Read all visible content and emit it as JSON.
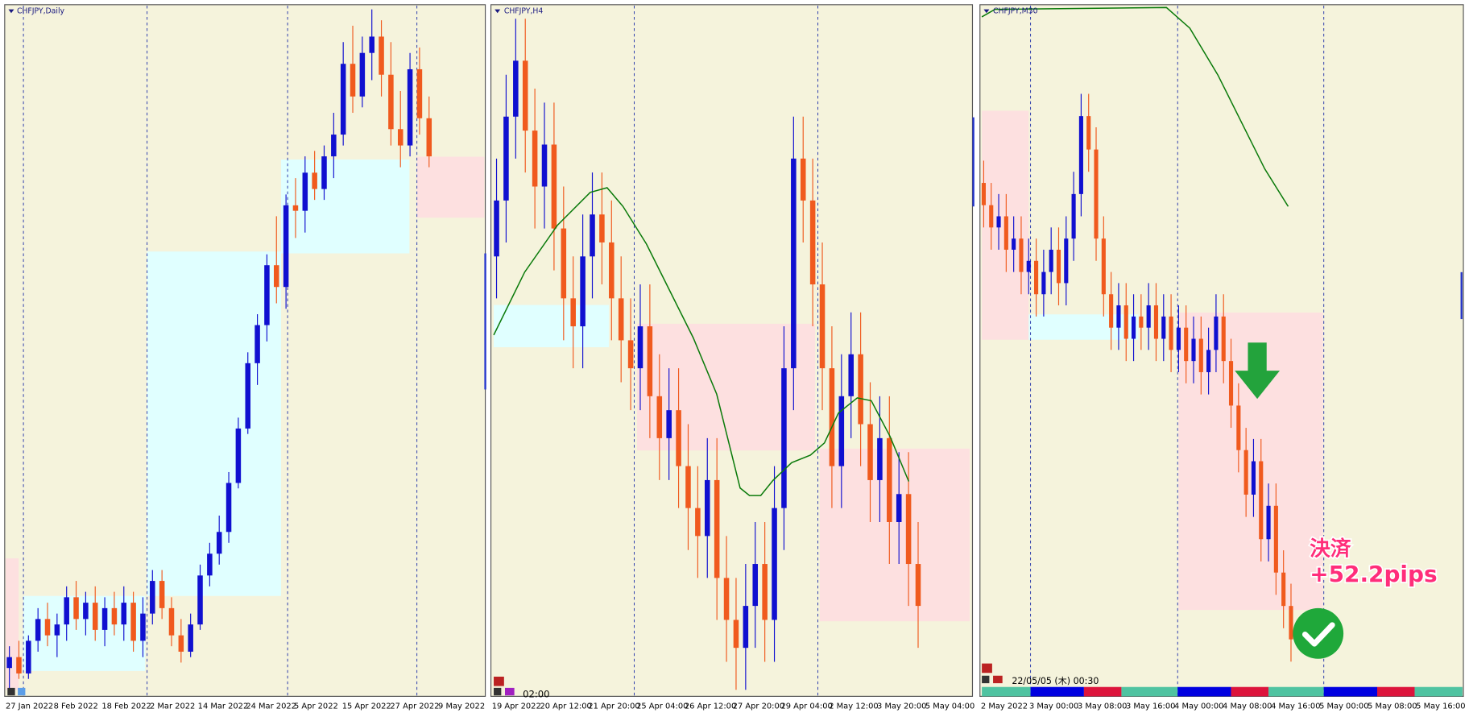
{
  "panels": [
    {
      "title": "CHFJPY,Daily",
      "x_labels": [
        "27 Jan 2022",
        "8 Feb 2022",
        "18 Feb 2022",
        "2 Mar 2022",
        "14 Mar 2022",
        "24 Mar 2022",
        "5 Apr 2022",
        "15 Apr 2022",
        "27 Apr 2022",
        "9 May 2022"
      ],
      "candles": [
        [
          124.0,
          124.4,
          123.6,
          124.2
        ],
        [
          124.2,
          124.5,
          123.8,
          123.9
        ],
        [
          123.9,
          124.6,
          123.8,
          124.5
        ],
        [
          124.5,
          125.1,
          124.3,
          124.9
        ],
        [
          124.9,
          125.2,
          124.4,
          124.6
        ],
        [
          124.6,
          125.0,
          124.2,
          124.8
        ],
        [
          124.8,
          125.5,
          124.5,
          125.3
        ],
        [
          125.3,
          125.6,
          124.7,
          124.9
        ],
        [
          124.9,
          125.4,
          124.6,
          125.2
        ],
        [
          125.2,
          125.5,
          124.5,
          124.7
        ],
        [
          124.7,
          125.3,
          124.4,
          125.1
        ],
        [
          125.1,
          125.4,
          124.6,
          124.8
        ],
        [
          124.8,
          125.5,
          124.5,
          125.2
        ],
        [
          125.2,
          125.4,
          124.3,
          124.5
        ],
        [
          124.5,
          125.3,
          124.2,
          125.0
        ],
        [
          125.0,
          125.8,
          124.8,
          125.6
        ],
        [
          125.6,
          125.8,
          124.9,
          125.1
        ],
        [
          125.1,
          125.3,
          124.4,
          124.6
        ],
        [
          124.6,
          124.9,
          124.1,
          124.3
        ],
        [
          124.3,
          125.0,
          124.2,
          124.8
        ],
        [
          124.8,
          125.9,
          124.7,
          125.7
        ],
        [
          125.7,
          126.3,
          125.5,
          126.1
        ],
        [
          126.1,
          126.8,
          125.9,
          126.5
        ],
        [
          126.5,
          127.6,
          126.3,
          127.4
        ],
        [
          127.4,
          128.6,
          127.3,
          128.4
        ],
        [
          128.4,
          129.8,
          128.3,
          129.6
        ],
        [
          129.6,
          130.5,
          129.2,
          130.3
        ],
        [
          130.3,
          131.6,
          130.0,
          131.4
        ],
        [
          131.4,
          132.3,
          130.7,
          131.0
        ],
        [
          131.0,
          132.7,
          130.6,
          132.5
        ],
        [
          132.5,
          133.0,
          131.9,
          132.4
        ],
        [
          132.4,
          133.4,
          132.0,
          133.1
        ],
        [
          133.1,
          133.5,
          132.6,
          132.8
        ],
        [
          132.8,
          133.6,
          132.6,
          133.4
        ],
        [
          133.4,
          134.2,
          133.0,
          133.8
        ],
        [
          133.8,
          135.5,
          133.6,
          135.1
        ],
        [
          135.1,
          135.8,
          134.2,
          134.5
        ],
        [
          134.5,
          135.6,
          134.3,
          135.3
        ],
        [
          135.3,
          136.1,
          134.8,
          135.6
        ],
        [
          135.6,
          135.9,
          134.5,
          134.9
        ],
        [
          134.9,
          135.5,
          133.6,
          133.9
        ],
        [
          133.9,
          134.6,
          133.2,
          133.6
        ],
        [
          133.6,
          135.3,
          133.4,
          135.0
        ],
        [
          135.0,
          135.4,
          133.8,
          134.1
        ],
        [
          134.1,
          134.5,
          133.2,
          133.4
        ]
      ]
    },
    {
      "title": "CHFJPY,H4",
      "x_labels": [
        "19 Apr 2022",
        "20 Apr 12:00",
        "21 Apr 20:00",
        "25 Apr 04:00",
        "26 Apr 12:00",
        "27 Apr 20:00",
        "29 Apr 04:00",
        "2 May 12:00",
        "3 May 20:00",
        "5 May 04:00"
      ],
      "candles": [
        [
          133.8,
          134.5,
          133.5,
          134.2
        ],
        [
          134.2,
          135.1,
          133.9,
          134.8
        ],
        [
          134.8,
          135.5,
          134.5,
          135.2
        ],
        [
          135.2,
          135.5,
          134.4,
          134.7
        ],
        [
          134.7,
          135.0,
          134.0,
          134.3
        ],
        [
          134.3,
          134.9,
          134.0,
          134.6
        ],
        [
          134.6,
          134.9,
          133.7,
          134.0
        ],
        [
          134.0,
          134.3,
          133.2,
          133.5
        ],
        [
          133.5,
          133.8,
          133.0,
          133.3
        ],
        [
          133.3,
          134.1,
          133.0,
          133.8
        ],
        [
          133.8,
          134.4,
          133.5,
          134.1
        ],
        [
          134.1,
          134.4,
          133.6,
          133.9
        ],
        [
          133.9,
          134.2,
          133.2,
          133.5
        ],
        [
          133.5,
          133.8,
          132.9,
          133.2
        ],
        [
          133.2,
          133.5,
          132.7,
          133.0
        ],
        [
          133.0,
          133.6,
          132.7,
          133.3
        ],
        [
          133.3,
          133.6,
          132.5,
          132.8
        ],
        [
          132.8,
          133.1,
          132.2,
          132.5
        ],
        [
          132.5,
          133.0,
          132.2,
          132.7
        ],
        [
          132.7,
          133.0,
          132.0,
          132.3
        ],
        [
          132.3,
          132.6,
          131.7,
          132.0
        ],
        [
          132.0,
          132.3,
          131.5,
          131.8
        ],
        [
          131.8,
          132.5,
          131.5,
          132.2
        ],
        [
          132.2,
          132.5,
          131.2,
          131.5
        ],
        [
          131.5,
          131.8,
          130.9,
          131.2
        ],
        [
          131.2,
          131.5,
          130.7,
          131.0
        ],
        [
          131.0,
          131.6,
          130.7,
          131.3
        ],
        [
          131.3,
          131.9,
          131.0,
          131.6
        ],
        [
          131.6,
          131.9,
          130.9,
          131.2
        ],
        [
          131.2,
          132.3,
          130.9,
          132.0
        ],
        [
          132.0,
          133.3,
          131.7,
          133.0
        ],
        [
          133.0,
          134.8,
          132.7,
          134.5
        ],
        [
          134.5,
          134.8,
          133.9,
          134.2
        ],
        [
          134.2,
          134.5,
          133.3,
          133.6
        ],
        [
          133.6,
          133.9,
          132.7,
          133.0
        ],
        [
          133.0,
          133.3,
          132.0,
          132.3
        ],
        [
          132.3,
          133.1,
          132.0,
          132.8
        ],
        [
          132.8,
          133.4,
          132.5,
          133.1
        ],
        [
          133.1,
          133.4,
          132.3,
          132.6
        ],
        [
          132.6,
          132.9,
          131.9,
          132.2
        ],
        [
          132.2,
          132.8,
          131.9,
          132.5
        ],
        [
          132.5,
          132.8,
          131.6,
          131.9
        ],
        [
          131.9,
          132.4,
          131.6,
          132.1
        ],
        [
          132.1,
          132.4,
          131.3,
          131.6
        ],
        [
          131.6,
          131.9,
          131.0,
          131.3
        ]
      ]
    },
    {
      "title": "CHFJPY,M30",
      "x_labels": [
        "2 May 2022",
        "3 May 00:00",
        "3 May 08:00",
        "3 May 16:00",
        "4 May 00:00",
        "4 May 08:00",
        "4 May 16:00",
        "5 May 00:00",
        "5 May 08:00",
        "5 May 16:00"
      ],
      "candles": [
        [
          134.0,
          134.2,
          133.6,
          133.8
        ],
        [
          133.8,
          134.0,
          133.4,
          133.6
        ],
        [
          133.6,
          133.9,
          133.4,
          133.7
        ],
        [
          133.7,
          133.9,
          133.2,
          133.4
        ],
        [
          133.4,
          133.7,
          133.2,
          133.5
        ],
        [
          133.5,
          133.7,
          133.0,
          133.2
        ],
        [
          133.2,
          133.5,
          133.0,
          133.3
        ],
        [
          133.3,
          133.5,
          132.8,
          133.0
        ],
        [
          133.0,
          133.4,
          132.8,
          133.2
        ],
        [
          133.2,
          133.6,
          133.0,
          133.4
        ],
        [
          133.4,
          133.6,
          132.9,
          133.1
        ],
        [
          133.1,
          133.7,
          132.9,
          133.5
        ],
        [
          133.5,
          134.1,
          133.3,
          133.9
        ],
        [
          133.9,
          134.8,
          133.7,
          134.6
        ],
        [
          134.6,
          134.8,
          134.1,
          134.3
        ],
        [
          134.3,
          134.5,
          133.3,
          133.5
        ],
        [
          133.5,
          133.7,
          132.8,
          133.0
        ],
        [
          133.0,
          133.2,
          132.5,
          132.7
        ],
        [
          132.7,
          133.1,
          132.5,
          132.9
        ],
        [
          132.9,
          133.1,
          132.4,
          132.6
        ],
        [
          132.6,
          133.0,
          132.4,
          132.8
        ],
        [
          132.8,
          133.0,
          132.5,
          132.7
        ],
        [
          132.7,
          133.1,
          132.5,
          132.9
        ],
        [
          132.9,
          133.1,
          132.4,
          132.6
        ],
        [
          132.6,
          133.0,
          132.4,
          132.8
        ],
        [
          132.8,
          133.0,
          132.3,
          132.5
        ],
        [
          132.5,
          132.9,
          132.3,
          132.7
        ],
        [
          132.7,
          132.9,
          132.2,
          132.4
        ],
        [
          132.4,
          132.8,
          132.2,
          132.6
        ],
        [
          132.6,
          132.8,
          132.1,
          132.3
        ],
        [
          132.3,
          132.7,
          132.1,
          132.5
        ],
        [
          132.5,
          133.0,
          132.3,
          132.8
        ],
        [
          132.8,
          133.0,
          132.2,
          132.4
        ],
        [
          132.4,
          132.6,
          131.8,
          132.0
        ],
        [
          132.0,
          132.2,
          131.4,
          131.6
        ],
        [
          131.6,
          131.8,
          131.0,
          131.2
        ],
        [
          131.2,
          131.7,
          131.0,
          131.5
        ],
        [
          131.5,
          131.7,
          130.6,
          130.8
        ],
        [
          130.8,
          131.3,
          130.6,
          131.1
        ],
        [
          131.1,
          131.3,
          130.3,
          130.5
        ],
        [
          130.5,
          130.7,
          130.0,
          130.2
        ],
        [
          130.2,
          130.4,
          129.7,
          129.9
        ]
      ]
    }
  ],
  "time_label": "02:00",
  "cursor_time": "22/05/05 (木) 00:30",
  "annotation": {
    "line1": "決済",
    "line2": "+52.2pips"
  }
}
